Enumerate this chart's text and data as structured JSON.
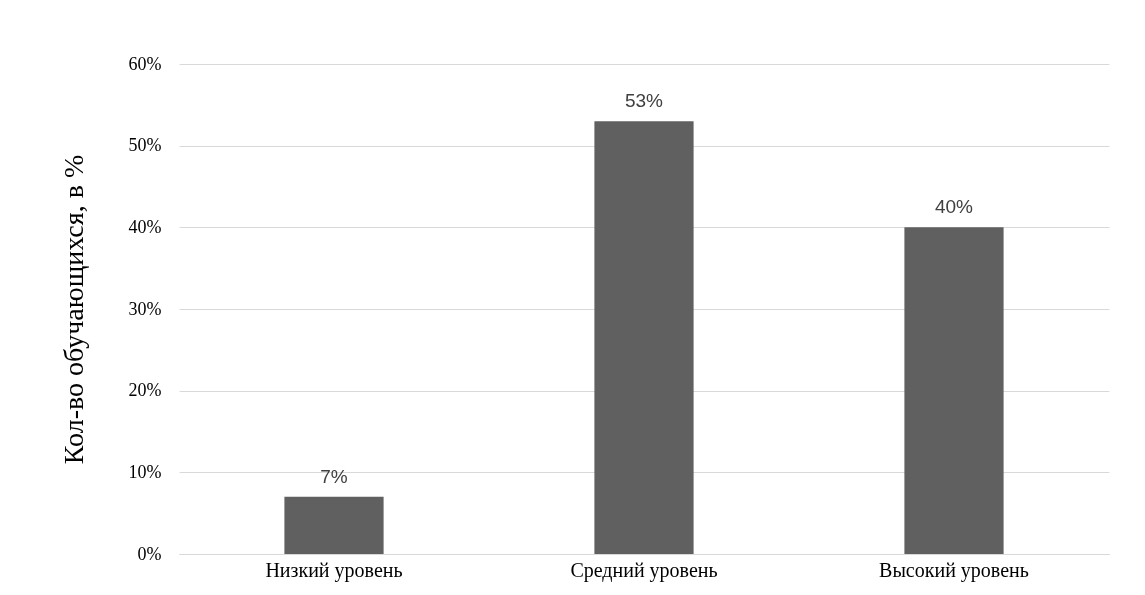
{
  "chart_data": {
    "type": "bar",
    "ylabel": "Кол-во обучающихся, в %",
    "categories": [
      "Низкий уровень",
      "Средний уровень",
      "Высокий уровень"
    ],
    "values": [
      7,
      53,
      40
    ],
    "color": "#606060",
    "value_labels": [
      "7%",
      "53%",
      "40%"
    ],
    "ylim": [
      0,
      60
    ],
    "yticks": [
      {
        "value": 0,
        "label": "0%"
      },
      {
        "value": 10,
        "label": "10%"
      },
      {
        "value": 20,
        "label": "20%"
      },
      {
        "value": 30,
        "label": "30%"
      },
      {
        "value": 40,
        "label": "40%"
      },
      {
        "value": 50,
        "label": "50%"
      },
      {
        "value": 60,
        "label": "60%"
      }
    ],
    "grid": "y"
  }
}
